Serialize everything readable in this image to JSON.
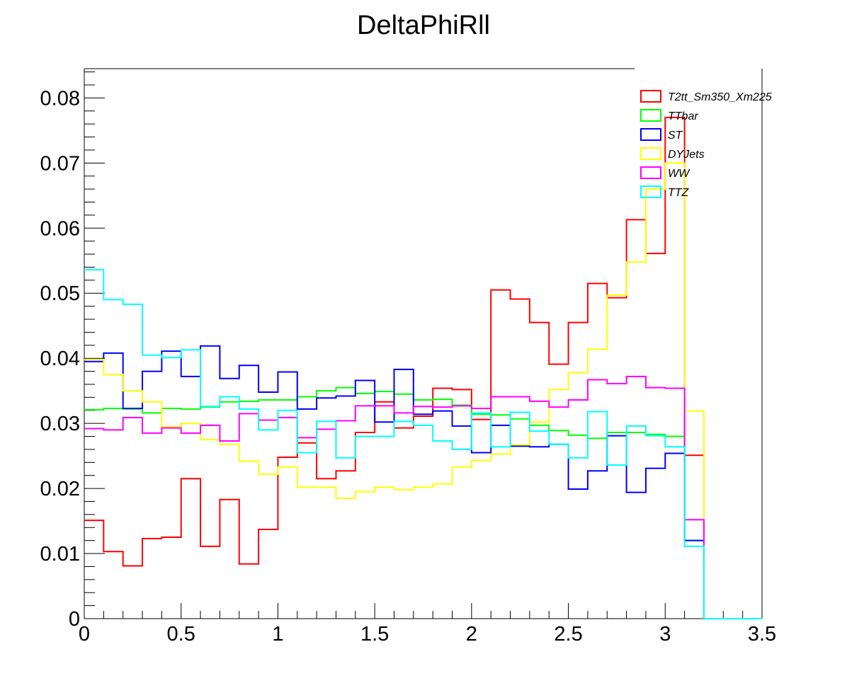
{
  "chart_data": {
    "type": "histogram-step",
    "title": "DeltaPhiRll",
    "xlabel": "",
    "ylabel": "",
    "xlim": [
      0,
      3.5
    ],
    "ylim": [
      0,
      0.0845
    ],
    "bin_width": 0.1,
    "x_ticks": [
      {
        "value": 0,
        "label": "0"
      },
      {
        "value": 0.5,
        "label": "0.5"
      },
      {
        "value": 1,
        "label": "1"
      },
      {
        "value": 1.5,
        "label": "1.5"
      },
      {
        "value": 2,
        "label": "2"
      },
      {
        "value": 2.5,
        "label": "2.5"
      },
      {
        "value": 3,
        "label": "3"
      },
      {
        "value": 3.5,
        "label": "3.5"
      }
    ],
    "y_ticks": [
      {
        "value": 0,
        "label": "0"
      },
      {
        "value": 0.01,
        "label": "0.01"
      },
      {
        "value": 0.02,
        "label": "0.02"
      },
      {
        "value": 0.03,
        "label": "0.03"
      },
      {
        "value": 0.04,
        "label": "0.04"
      },
      {
        "value": 0.05,
        "label": "0.05"
      },
      {
        "value": 0.06,
        "label": "0.06"
      },
      {
        "value": 0.07,
        "label": "0.07"
      },
      {
        "value": 0.08,
        "label": "0.08"
      }
    ],
    "legend_position": "top-right",
    "series": [
      {
        "name": "T2tt_Sm350_Xm225",
        "color": "#ff0000",
        "values": [
          0.0151,
          0.0103,
          0.0081,
          0.0123,
          0.0125,
          0.0215,
          0.0111,
          0.0183,
          0.0084,
          0.0137,
          0.0248,
          0.027,
          0.0215,
          0.0227,
          0.0286,
          0.0333,
          0.0293,
          0.0311,
          0.0354,
          0.0352,
          0.0306,
          0.0505,
          0.0491,
          0.0455,
          0.0391,
          0.0455,
          0.0515,
          0.0493,
          0.0613,
          0.0561,
          0.077,
          0.0251,
          0,
          0,
          0
        ]
      },
      {
        "name": "TTbar",
        "color": "#00ff00",
        "values": [
          0.0321,
          0.0323,
          0.0322,
          0.0316,
          0.0323,
          0.0322,
          0.0325,
          0.0333,
          0.0334,
          0.0336,
          0.0336,
          0.0341,
          0.035,
          0.0355,
          0.0346,
          0.0349,
          0.0345,
          0.0336,
          0.0337,
          0.0328,
          0.0314,
          0.0313,
          0.0307,
          0.0297,
          0.0289,
          0.0282,
          0.0277,
          0.0286,
          0.0286,
          0.0283,
          0.028,
          0.012,
          0,
          0,
          0
        ]
      },
      {
        "name": "ST",
        "color": "#0000ff",
        "values": [
          0.0395,
          0.0408,
          0.0323,
          0.038,
          0.0411,
          0.0372,
          0.0419,
          0.0369,
          0.0389,
          0.0348,
          0.0379,
          0.0322,
          0.0339,
          0.0342,
          0.0366,
          0.0302,
          0.0383,
          0.0314,
          0.0319,
          0.0296,
          0.0255,
          0.0297,
          0.0265,
          0.0264,
          0.0268,
          0.0199,
          0.0227,
          0.0281,
          0.0194,
          0.0231,
          0.0254,
          0.012,
          0,
          0,
          0
        ]
      },
      {
        "name": "DYJets",
        "color": "#ffff00",
        "values": [
          0.0398,
          0.0375,
          0.035,
          0.0333,
          0.0295,
          0.03,
          0.0275,
          0.0268,
          0.0242,
          0.0222,
          0.0233,
          0.0202,
          0.0202,
          0.0185,
          0.0195,
          0.0202,
          0.0198,
          0.0202,
          0.0207,
          0.0233,
          0.0243,
          0.0253,
          0.0267,
          0.0302,
          0.0352,
          0.0378,
          0.0414,
          0.0497,
          0.0548,
          0.066,
          0.07,
          0.0319,
          0,
          0,
          0
        ]
      },
      {
        "name": "WW",
        "color": "#ff00ff",
        "values": [
          0.0292,
          0.029,
          0.0309,
          0.0285,
          0.0293,
          0.0285,
          0.0297,
          0.0273,
          0.0315,
          0.0305,
          0.0309,
          0.0278,
          0.0291,
          0.0304,
          0.0327,
          0.0327,
          0.0316,
          0.0326,
          0.0325,
          0.0327,
          0.0323,
          0.0341,
          0.0341,
          0.0334,
          0.0325,
          0.0336,
          0.0367,
          0.0361,
          0.0372,
          0.0355,
          0.0354,
          0.0152,
          0,
          0,
          0
        ]
      },
      {
        "name": "TTZ",
        "color": "#00ffff",
        "values": [
          0.0536,
          0.049,
          0.0483,
          0.0405,
          0.0401,
          0.0413,
          0.0326,
          0.0341,
          0.0322,
          0.029,
          0.032,
          0.0255,
          0.0303,
          0.0247,
          0.028,
          0.028,
          0.0303,
          0.0297,
          0.0273,
          0.026,
          0.0316,
          0.0264,
          0.0317,
          0.0288,
          0.0268,
          0.0247,
          0.0318,
          0.0236,
          0.0296,
          0.0281,
          0.0264,
          0.0111,
          0,
          0,
          0
        ]
      }
    ]
  }
}
